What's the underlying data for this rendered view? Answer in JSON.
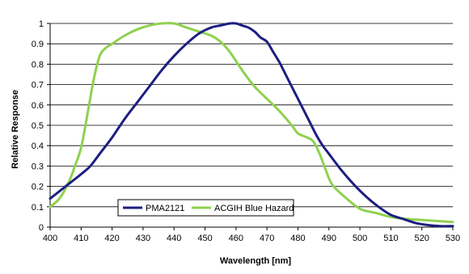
{
  "chart_data": {
    "type": "line",
    "title": "",
    "xlabel": "Wavelength [nm]",
    "ylabel": "Relative Response",
    "xlim": [
      400,
      530
    ],
    "ylim": [
      0,
      1
    ],
    "x_ticks": [
      400,
      410,
      420,
      430,
      440,
      450,
      460,
      470,
      480,
      490,
      500,
      510,
      520,
      530
    ],
    "y_ticks": [
      0,
      0.1,
      0.2,
      0.3,
      0.4,
      0.5,
      0.6,
      0.7,
      0.8,
      0.9,
      1
    ],
    "x_tick_labels": [
      "400",
      "410",
      "420",
      "430",
      "440",
      "450",
      "460",
      "470",
      "480",
      "490",
      "500",
      "510",
      "520",
      "530"
    ],
    "y_tick_labels": [
      "0",
      "0.1",
      "0.2",
      "0.3",
      "0.4",
      "0.5",
      "0.6",
      "0.7",
      "0.8",
      "0.9",
      "1"
    ],
    "grid": "horizontal",
    "legend_position": "bottom-left",
    "series": [
      {
        "name": "PMA2121",
        "color": "#1e1e82",
        "x": [
          400,
          405,
          410,
          413,
          416,
          420,
          424,
          428,
          432,
          436,
          440,
          444,
          448,
          452,
          455,
          458,
          460,
          462,
          464,
          466,
          468,
          470,
          472,
          474,
          476,
          478,
          480,
          482,
          484,
          486,
          488,
          490,
          494,
          498,
          502,
          506,
          510,
          514,
          518,
          522,
          526,
          530
        ],
        "y": [
          0.14,
          0.2,
          0.26,
          0.3,
          0.36,
          0.44,
          0.53,
          0.61,
          0.69,
          0.77,
          0.84,
          0.9,
          0.95,
          0.98,
          0.99,
          1.0,
          1.0,
          0.99,
          0.98,
          0.96,
          0.93,
          0.91,
          0.86,
          0.81,
          0.75,
          0.69,
          0.63,
          0.57,
          0.51,
          0.45,
          0.4,
          0.36,
          0.28,
          0.21,
          0.15,
          0.1,
          0.06,
          0.04,
          0.02,
          0.01,
          0.005,
          0.005
        ]
      },
      {
        "name": "ACGIH Blue Hazard",
        "color": "#8fd14f",
        "x": [
          400,
          403,
          406,
          408,
          410,
          412,
          414,
          416,
          418,
          420,
          424,
          428,
          432,
          436,
          440,
          444,
          448,
          452,
          455,
          458,
          462,
          466,
          470,
          474,
          478,
          480,
          483,
          485,
          487,
          489,
          491,
          495,
          500,
          505,
          510,
          515,
          520,
          525,
          530
        ],
        "y": [
          0.1,
          0.14,
          0.22,
          0.3,
          0.39,
          0.55,
          0.72,
          0.84,
          0.88,
          0.9,
          0.94,
          0.97,
          0.99,
          1.0,
          1.0,
          0.98,
          0.96,
          0.94,
          0.91,
          0.86,
          0.77,
          0.69,
          0.63,
          0.57,
          0.5,
          0.46,
          0.44,
          0.42,
          0.36,
          0.28,
          0.21,
          0.15,
          0.09,
          0.07,
          0.05,
          0.04,
          0.035,
          0.03,
          0.025
        ]
      }
    ]
  }
}
